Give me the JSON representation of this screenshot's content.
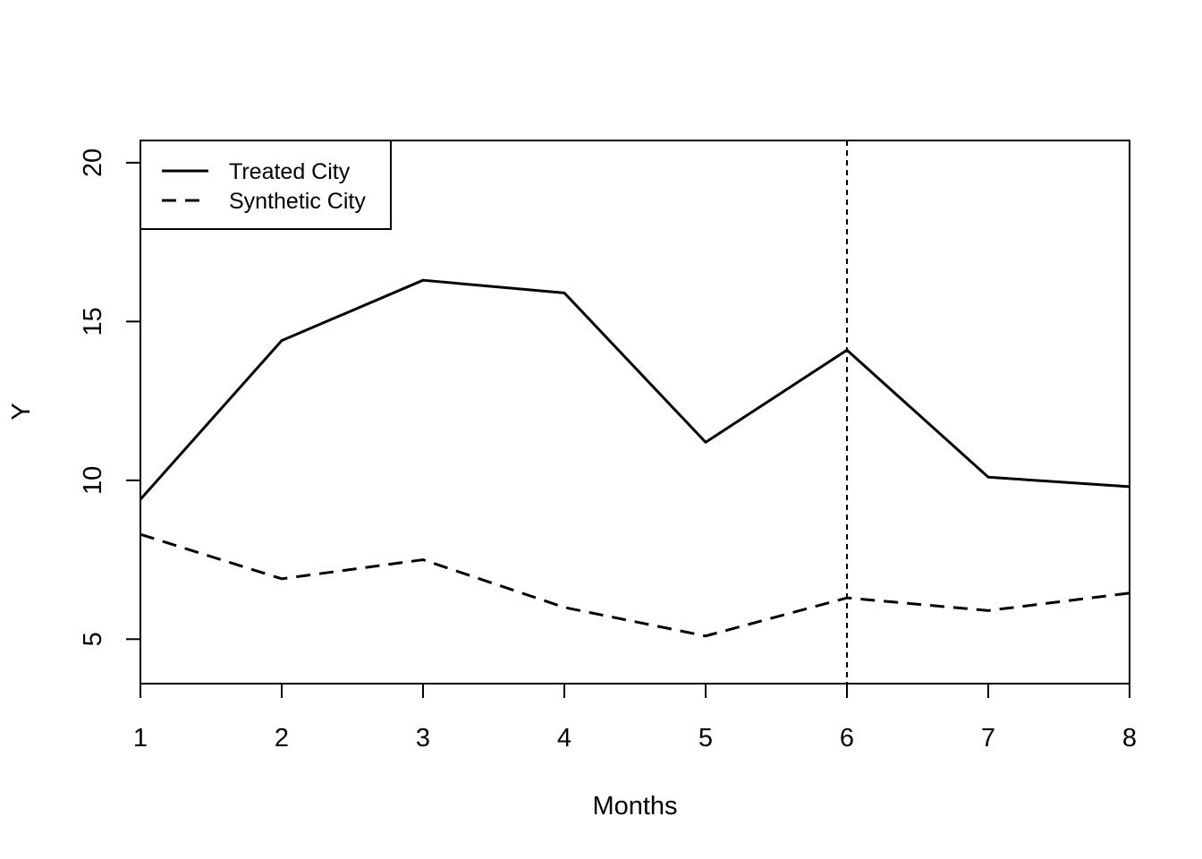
{
  "chart_data": {
    "type": "line",
    "xlabel": "Months",
    "ylabel": "Y",
    "x": [
      1,
      2,
      3,
      4,
      5,
      6,
      7,
      8
    ],
    "xlim": [
      1,
      8
    ],
    "ylim": [
      3.6,
      20.7
    ],
    "xticks": [
      1,
      2,
      3,
      4,
      5,
      6,
      7,
      8
    ],
    "yticks": [
      5,
      10,
      15,
      20
    ],
    "grid": false,
    "legend_position": "top-left",
    "series": [
      {
        "name": "Treated City",
        "style": "solid",
        "color": "#000000",
        "values": [
          9.4,
          14.4,
          16.3,
          15.9,
          11.2,
          14.1,
          10.1,
          9.8
        ]
      },
      {
        "name": "Synthetic City",
        "style": "dashed",
        "color": "#000000",
        "values": [
          8.3,
          6.9,
          7.5,
          6.0,
          5.1,
          6.3,
          5.9,
          6.45
        ]
      }
    ],
    "vline": {
      "x": 6,
      "style": "dotted"
    }
  }
}
